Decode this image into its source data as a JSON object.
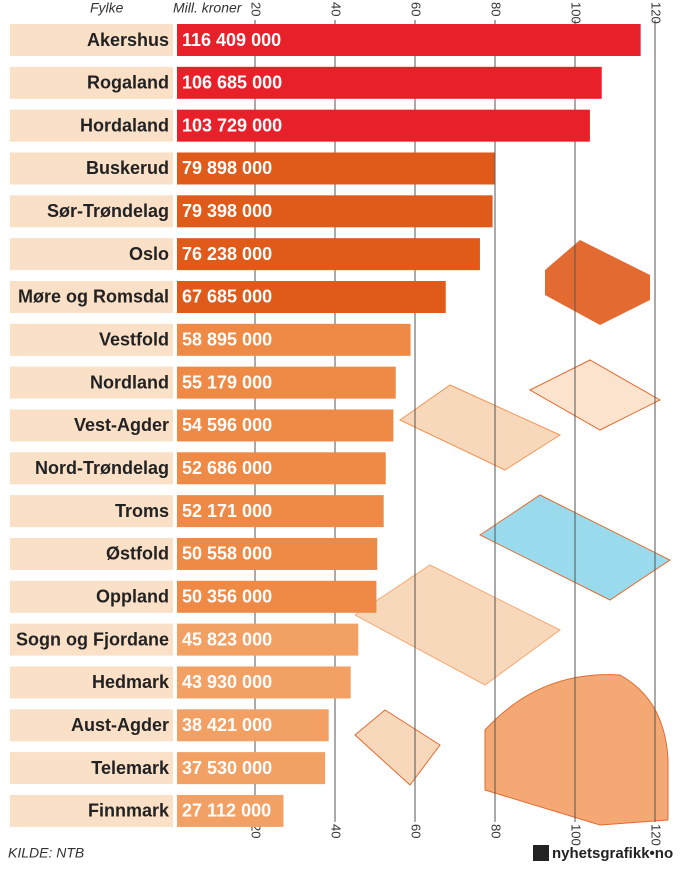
{
  "chart_data": {
    "type": "bar",
    "orientation": "horizontal",
    "category_header": "Fylke",
    "value_header": "Mill. kroner",
    "categories": [
      "Akershus",
      "Rogaland",
      "Hordaland",
      "Buskerud",
      "Sør-Trøndelag",
      "Oslo",
      "Møre og Romsdal",
      "Vestfold",
      "Nordland",
      "Vest-Agder",
      "Nord-Trøndelag",
      "Troms",
      "Østfold",
      "Oppland",
      "Sogn og Fjordane",
      "Hedmark",
      "Aust-Agder",
      "Telemark",
      "Finnmark"
    ],
    "values": [
      116.409,
      106.685,
      103.729,
      79.898,
      79.398,
      76.238,
      67.685,
      58.895,
      55.179,
      54.596,
      52.686,
      52.171,
      50.558,
      50.356,
      45.823,
      43.93,
      38.421,
      37.53,
      27.112
    ],
    "value_labels": [
      "116 409 000",
      "106 685 000",
      "103 729 000",
      "79 898 000",
      "79 398 000",
      "76 238 000",
      "67 685 000",
      "58 895 000",
      "55 179 000",
      "54 596 000",
      "52 686 000",
      "52 171 000",
      "50 558 000",
      "50 356 000",
      "45 823 000",
      "43 930 000",
      "38 421 000",
      "37 530 000",
      "27 112 000"
    ],
    "colors": [
      "#e8202a",
      "#e8202a",
      "#e8202a",
      "#e05a1a",
      "#e05a1a",
      "#e05a1a",
      "#e05a1a",
      "#ee8a45",
      "#ee8a45",
      "#ee8a45",
      "#ee8a45",
      "#ee8a45",
      "#ee8a45",
      "#ee8a45",
      "#f3a065",
      "#f3a065",
      "#f3a065",
      "#f3a065",
      "#f3a065"
    ],
    "xlim": [
      0,
      120
    ],
    "xticks": [
      20,
      40,
      60,
      80,
      100,
      120
    ],
    "grid": true,
    "source": "KILDE: NTB",
    "credit": "nyhetsgrafikk•no"
  }
}
